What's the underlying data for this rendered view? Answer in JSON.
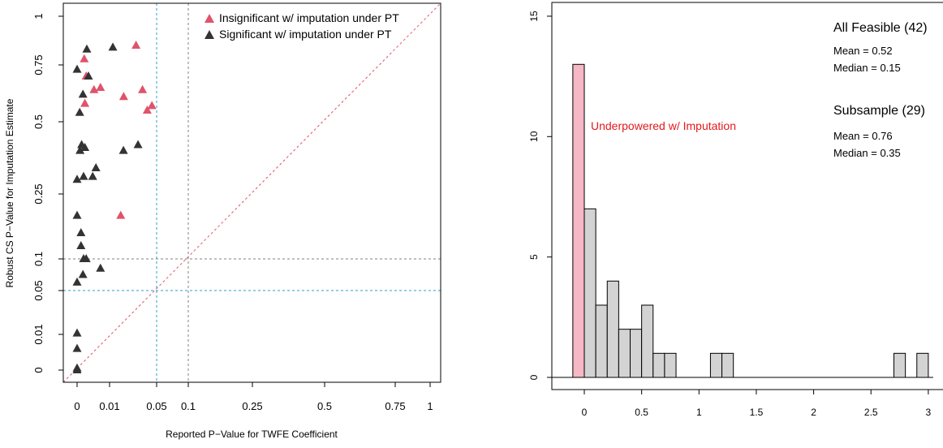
{
  "chart_data": [
    {
      "type": "scatter",
      "xlabel": "Reported P−Value for TWFE Coefficient",
      "ylabel": "Robust CS P−Value for Imputation Estimate",
      "xlim": [
        -0.05,
        1.05
      ],
      "ylim": [
        -0.05,
        1.05
      ],
      "axis_scale": "piecewise: compressed 0–0.1, linear above",
      "xticks": [
        {
          "v": 0,
          "label": "0"
        },
        {
          "v": 0.01,
          "label": "0.01"
        },
        {
          "v": 0.05,
          "label": "0.05"
        },
        {
          "v": 0.1,
          "label": "0.1"
        },
        {
          "v": 0.25,
          "label": "0.25"
        },
        {
          "v": 0.5,
          "label": "0.5"
        },
        {
          "v": 0.75,
          "label": "0.75"
        },
        {
          "v": 1,
          "label": "1"
        }
      ],
      "yticks": [
        {
          "v": 0,
          "label": "0"
        },
        {
          "v": 0.01,
          "label": "0.01"
        },
        {
          "v": 0.05,
          "label": "0.05"
        },
        {
          "v": 0.1,
          "label": "0.1"
        },
        {
          "v": 0.25,
          "label": "0.25"
        },
        {
          "v": 0.5,
          "label": "0.5"
        },
        {
          "v": 0.75,
          "label": "0.75"
        },
        {
          "v": 1,
          "label": "1"
        }
      ],
      "reference_lines": [
        {
          "axis": "x",
          "value": 0.05,
          "color": "#2b9fd2"
        },
        {
          "axis": "x",
          "value": 0.1,
          "color": "#808080"
        },
        {
          "axis": "y",
          "value": 0.05,
          "color": "#2b9fd2"
        },
        {
          "axis": "y",
          "value": 0.1,
          "color": "#808080"
        },
        {
          "type": "diagonal",
          "color": "#df536b"
        }
      ],
      "legend_position": "top-right",
      "series": [
        {
          "name": "Insignificant w/ imputation under PT",
          "color": "#df536b",
          "marker": "triangle",
          "points": [
            [
              0.0022,
              0.78
            ],
            [
              0.0028,
              0.7
            ],
            [
              0.0052,
              0.64
            ],
            [
              0.0072,
              0.65
            ],
            [
              0.0024,
              0.58
            ],
            [
              0.022,
              0.61
            ],
            [
              0.038,
              0.64
            ],
            [
              0.042,
              0.55
            ],
            [
              0.046,
              0.57
            ],
            [
              0.0325,
              0.85
            ],
            [
              0.0195,
              0.2
            ]
          ]
        },
        {
          "name": "Significant w/ imputation under PT",
          "color": "#000000",
          "marker": "triangle",
          "points": [
            [
              0.0,
              0.73
            ],
            [
              0.003,
              0.83
            ],
            [
              0.0128,
              0.84
            ],
            [
              0.0035,
              0.7
            ],
            [
              0.0018,
              0.62
            ],
            [
              0.0008,
              0.54
            ],
            [
              0.0014,
              0.42
            ],
            [
              0.0009,
              0.4
            ],
            [
              0.0024,
              0.41
            ],
            [
              0.0218,
              0.4
            ],
            [
              0.0342,
              0.42
            ],
            [
              0.0058,
              0.34
            ],
            [
              0.0048,
              0.31
            ],
            [
              0.002,
              0.31
            ],
            [
              0.0,
              0.3
            ],
            [
              0.0,
              0.2
            ],
            [
              0.0012,
              0.16
            ],
            [
              0.0012,
              0.13
            ],
            [
              0.002,
              0.1
            ],
            [
              0.0028,
              0.1
            ],
            [
              0.0018,
              0.075
            ],
            [
              0.0072,
              0.085
            ],
            [
              0.0,
              0.063
            ],
            [
              0.0,
              0.011
            ],
            [
              0.0,
              0.006
            ],
            [
              0.0,
              0.0005
            ],
            [
              0.0,
              0.0
            ]
          ]
        }
      ]
    },
    {
      "type": "bar",
      "subtype": "histogram",
      "xlim": [
        -0.3,
        3.05
      ],
      "ylim": [
        0,
        15
      ],
      "xticks": [
        {
          "v": 0,
          "label": "0"
        },
        {
          "v": 0.5,
          "label": "0.5"
        },
        {
          "v": 1,
          "label": "1"
        },
        {
          "v": 1.5,
          "label": "1.5"
        },
        {
          "v": 2,
          "label": "2"
        },
        {
          "v": 2.5,
          "label": "2.5"
        },
        {
          "v": 3,
          "label": "3"
        }
      ],
      "yticks": [
        {
          "v": 0,
          "label": "0"
        },
        {
          "v": 5,
          "label": "5"
        },
        {
          "v": 10,
          "label": "10"
        },
        {
          "v": 15,
          "label": "15"
        }
      ],
      "underpowered_bin": {
        "from": -0.1,
        "to": 0,
        "count": 13,
        "color": "#f5b8c4",
        "label": "Underpowered w/ Imputation",
        "label_color": "#e31a1c"
      },
      "bin_width": 0.1,
      "bins": [
        {
          "from": 0.0,
          "count": 7
        },
        {
          "from": 0.1,
          "count": 3
        },
        {
          "from": 0.2,
          "count": 4
        },
        {
          "from": 0.3,
          "count": 2
        },
        {
          "from": 0.4,
          "count": 2
        },
        {
          "from": 0.5,
          "count": 3
        },
        {
          "from": 0.6,
          "count": 1
        },
        {
          "from": 0.7,
          "count": 1
        },
        {
          "from": 1.1,
          "count": 1
        },
        {
          "from": 1.2,
          "count": 1
        },
        {
          "from": 2.7,
          "count": 1
        },
        {
          "from": 2.9,
          "count": 1
        }
      ],
      "bar_color": "#d3d3d3",
      "annotations": {
        "all_feasible": {
          "title": "All Feasible (42)",
          "mean": "Mean = 0.52",
          "median": "Median = 0.15"
        },
        "subsample": {
          "title": "Subsample (29)",
          "mean": "Mean = 0.76",
          "median": "Median = 0.35"
        }
      }
    }
  ]
}
